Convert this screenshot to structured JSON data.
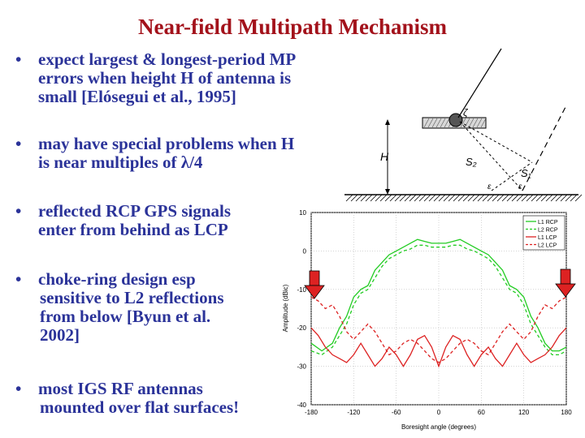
{
  "title": "Near-field Multipath Mechanism",
  "bullets": [
    {
      "lines": [
        "expect largest & longest-period MP",
        "errors when height H of antenna is",
        "small [Elósegui et al., 1995]"
      ]
    },
    {
      "lines": [
        "may have special problems when H",
        "is near multiples of λ/4"
      ]
    },
    {
      "lines": [
        "reflected RCP GPS signals",
        "enter from behind as LCP"
      ]
    },
    {
      "lines": [
        "choke-ring design esp",
        "sensitive to L2 reflections",
        "from below [Byun et al.",
        "2002]"
      ]
    },
    {
      "lines": [
        "most IGS RF antennas",
        "mounted over flat surfaces!"
      ]
    }
  ],
  "bullet_symbol": "•",
  "diagram": {
    "labels": {
      "h": "H",
      "s1": "S₁",
      "s2": "S₂",
      "zeta": "ζ",
      "eps1": "ε",
      "eps2": "ε"
    }
  },
  "chart_data": {
    "type": "line",
    "title": "",
    "xlabel": "Boresight angle (degrees)",
    "ylabel": "Amplitude (dBic)",
    "xlim": [
      -180,
      180
    ],
    "ylim": [
      -40,
      10
    ],
    "xticks": [
      -180,
      -120,
      -60,
      0,
      60,
      120,
      180
    ],
    "yticks": [
      10,
      0,
      -10,
      -20,
      -30,
      -40
    ],
    "xtick_labels": [
      "-180",
      "-120",
      "-60",
      "0",
      "60",
      "120",
      "180"
    ],
    "ytick_labels": [
      "10",
      "0",
      "-10",
      "-20",
      "-30",
      "-40"
    ],
    "grid": true,
    "legend_position": "top-right",
    "series": [
      {
        "name": "L1 RCP",
        "color": "#22cc22",
        "style": "solid",
        "x": [
          -180,
          -165,
          -150,
          -140,
          -130,
          -120,
          -110,
          -100,
          -90,
          -80,
          -70,
          -60,
          -50,
          -40,
          -30,
          -20,
          -10,
          0,
          10,
          20,
          30,
          40,
          50,
          60,
          70,
          80,
          90,
          100,
          110,
          120,
          130,
          140,
          150,
          160,
          170,
          180
        ],
        "y": [
          -24,
          -26,
          -24,
          -20,
          -17,
          -12,
          -10,
          -9,
          -5,
          -3,
          -1,
          0,
          1,
          2,
          3,
          2.5,
          2,
          2,
          2,
          2.5,
          3,
          2,
          1,
          0,
          -1,
          -3,
          -5,
          -9,
          -10,
          -12,
          -17,
          -20,
          -24,
          -26,
          -26,
          -25
        ]
      },
      {
        "name": "L2 RCP",
        "color": "#22cc22",
        "style": "dashed",
        "x": [
          -180,
          -165,
          -150,
          -140,
          -130,
          -120,
          -110,
          -100,
          -90,
          -80,
          -70,
          -60,
          -50,
          -40,
          -30,
          -20,
          -10,
          0,
          10,
          20,
          30,
          40,
          50,
          60,
          70,
          80,
          90,
          100,
          110,
          120,
          130,
          140,
          150,
          160,
          170,
          180
        ],
        "y": [
          -26,
          -27,
          -25,
          -22,
          -19,
          -14,
          -11,
          -10,
          -7,
          -4,
          -2,
          -1,
          0,
          0.5,
          1.5,
          1.5,
          1,
          1,
          1,
          1.5,
          1.5,
          0.5,
          0,
          -1,
          -2,
          -4,
          -7,
          -10,
          -11,
          -14,
          -19,
          -22,
          -25,
          -27,
          -27,
          -26
        ]
      },
      {
        "name": "L1 LCP",
        "color": "#dd2222",
        "style": "solid",
        "x": [
          -180,
          -170,
          -160,
          -150,
          -140,
          -130,
          -120,
          -110,
          -100,
          -90,
          -80,
          -70,
          -60,
          -50,
          -40,
          -30,
          -20,
          -10,
          0,
          10,
          20,
          30,
          40,
          50,
          60,
          70,
          80,
          90,
          100,
          110,
          120,
          130,
          140,
          150,
          160,
          170,
          180
        ],
        "y": [
          -20,
          -22,
          -25,
          -27,
          -28,
          -29,
          -27,
          -24,
          -27,
          -30,
          -28,
          -25,
          -27,
          -30,
          -27,
          -23,
          -22,
          -25,
          -30,
          -25,
          -22,
          -23,
          -27,
          -30,
          -27,
          -25,
          -28,
          -30,
          -27,
          -24,
          -27,
          -29,
          -28,
          -27,
          -25,
          -22,
          -20
        ]
      },
      {
        "name": "L2 LCP",
        "color": "#dd2222",
        "style": "dashed",
        "x": [
          -180,
          -170,
          -160,
          -150,
          -140,
          -130,
          -120,
          -110,
          -100,
          -90,
          -80,
          -70,
          -60,
          -50,
          -40,
          -30,
          -20,
          -10,
          0,
          10,
          20,
          30,
          40,
          50,
          60,
          70,
          80,
          90,
          100,
          110,
          120,
          130,
          140,
          150,
          160,
          170,
          180
        ],
        "y": [
          -12,
          -13,
          -15,
          -14,
          -17,
          -21,
          -23,
          -21,
          -19,
          -21,
          -24,
          -27,
          -26,
          -24,
          -23,
          -24,
          -26,
          -28,
          -29,
          -28,
          -26,
          -24,
          -23,
          -24,
          -26,
          -27,
          -24,
          -21,
          -19,
          -21,
          -23,
          -21,
          -17,
          -14,
          -15,
          -13,
          -12
        ]
      }
    ]
  }
}
